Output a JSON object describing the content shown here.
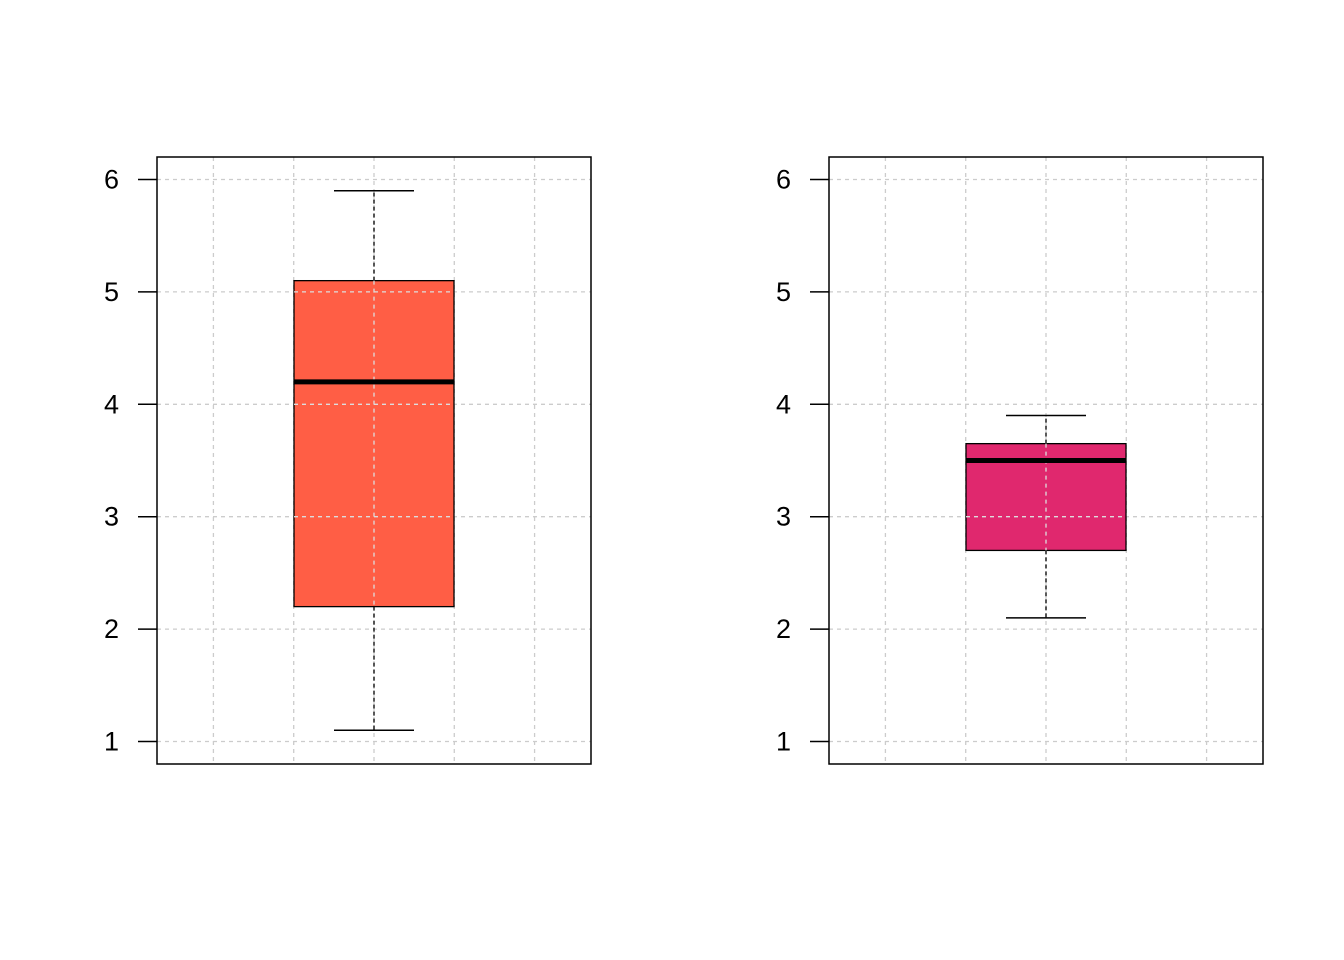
{
  "chart_data": [
    {
      "type": "box",
      "title": "",
      "xlabel": "",
      "ylabel": "",
      "ylim": [
        0.8,
        6.2
      ],
      "yticks": [
        1,
        2,
        3,
        4,
        5,
        6
      ],
      "ytick_labels": [
        "1",
        "2",
        "3",
        "4",
        "5",
        "6"
      ],
      "grid": true,
      "fill_color": "#FF5E45",
      "box": {
        "whisker_low": 1.1,
        "q1": 2.2,
        "median": 4.2,
        "q3": 5.1,
        "whisker_high": 5.9
      }
    },
    {
      "type": "box",
      "title": "",
      "xlabel": "",
      "ylabel": "",
      "ylim": [
        0.8,
        6.2
      ],
      "yticks": [
        1,
        2,
        3,
        4,
        5,
        6
      ],
      "ytick_labels": [
        "1",
        "2",
        "3",
        "4",
        "5",
        "6"
      ],
      "grid": true,
      "fill_color": "#E0286E",
      "box": {
        "whisker_low": 2.1,
        "q1": 2.7,
        "median": 3.5,
        "q3": 3.65,
        "whisker_high": 3.9
      }
    }
  ]
}
